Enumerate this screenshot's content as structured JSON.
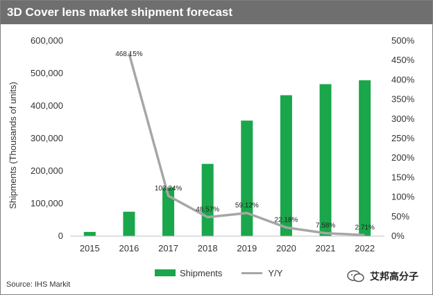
{
  "title": "3D Cover lens market shipment forecast",
  "source": "Source: IHS Markit",
  "watermark": "艾邦高分子",
  "legend": {
    "shipments": "Shipments",
    "yy": "Y/Y"
  },
  "colors": {
    "bar": "#1aa64a",
    "line": "#a6a6a6",
    "title_bg": "#6f6f6f"
  },
  "chart_data": {
    "type": "bar+line",
    "title": "3D Cover lens market shipment forecast",
    "categories": [
      "2015",
      "2016",
      "2017",
      "2018",
      "2019",
      "2020",
      "2021",
      "2022"
    ],
    "ylabel": "Shipments (Thousands of units)",
    "ylim": [
      0,
      600000
    ],
    "yticks": [
      "0",
      "100,000",
      "200,000",
      "300,000",
      "400,000",
      "500,000",
      "600,000"
    ],
    "y2lim": [
      0,
      500
    ],
    "y2ticks": [
      "0%",
      "50%",
      "100%",
      "150%",
      "200%",
      "250%",
      "300%",
      "350%",
      "400%",
      "450%",
      "500%"
    ],
    "grid": false,
    "legend_position": "bottom",
    "series": [
      {
        "name": "Shipments",
        "type": "bar",
        "axis": "left",
        "values": [
          13000,
          75000,
          150000,
          222000,
          355000,
          433000,
          467000,
          479000
        ]
      },
      {
        "name": "Y/Y",
        "type": "line",
        "axis": "right",
        "values": [
          null,
          468.15,
          103.24,
          48.57,
          59.12,
          22.18,
          7.58,
          2.71
        ],
        "labels": [
          null,
          "468.15%",
          "103.24%",
          "48.57%",
          "59.12%",
          "22.18%",
          "7.58%",
          "2.71%"
        ]
      }
    ]
  }
}
